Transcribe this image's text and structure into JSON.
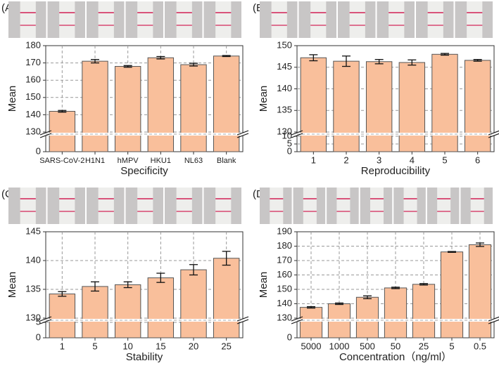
{
  "chart_data": [
    {
      "type": "bar",
      "label": "(A)",
      "xlabel": "Specificity",
      "ylabel": "Mean",
      "categories": [
        "SARS-CoV-2",
        "H1N1",
        "hMPV",
        "HKU1",
        "NL63",
        "Blank"
      ],
      "values": [
        142,
        171,
        168,
        173,
        169,
        174
      ],
      "errors": [
        0.5,
        1,
        0.5,
        0.7,
        0.8,
        0.3
      ],
      "color": "#f9bf9b",
      "ylim": [
        0,
        180
      ],
      "ybreak": [
        10,
        130
      ],
      "yticks": [
        0,
        130,
        140,
        150,
        160,
        170,
        180
      ],
      "grid": true,
      "xgrid": true
    },
    {
      "type": "bar",
      "label": "(B)",
      "xlabel": "Reproducibility",
      "ylabel": "Mean",
      "categories": [
        "1",
        "2",
        "3",
        "4",
        "5",
        "6"
      ],
      "values": [
        147.2,
        146.4,
        146.3,
        146.1,
        148,
        146.6
      ],
      "errors": [
        0.7,
        1.2,
        0.5,
        0.6,
        0.2,
        0.2
      ],
      "color": "#f9bf9b",
      "ylim": [
        0,
        150
      ],
      "ybreak": [
        10,
        130
      ],
      "yticks": [
        0,
        5,
        10,
        130,
        135,
        140,
        145,
        150
      ],
      "grid": true,
      "xgrid": false
    },
    {
      "type": "bar",
      "label": "(C)",
      "xlabel": "Stability",
      "ylabel": "Mean",
      "categories": [
        "1",
        "5",
        "10",
        "15",
        "20",
        "25"
      ],
      "values": [
        134.2,
        135.5,
        135.8,
        137,
        138.4,
        140.4
      ],
      "errors": [
        0.4,
        0.8,
        0.5,
        0.8,
        0.9,
        1.2
      ],
      "color": "#f9bf9b",
      "ylim": [
        0,
        145
      ],
      "ybreak": [
        5,
        130
      ],
      "yticks": [
        0,
        5,
        130,
        135,
        140,
        145
      ],
      "grid": true,
      "xgrid": true
    },
    {
      "type": "bar",
      "label": "(D)",
      "xlabel": "Concentration（ng/ml）",
      "ylabel": "Mean",
      "categories": [
        "5000",
        "1000",
        "500",
        "50",
        "25",
        "5",
        "0.5"
      ],
      "values": [
        137.5,
        140,
        144.5,
        151,
        153.5,
        176,
        181
      ],
      "errors": [
        0.5,
        0.5,
        1,
        0.5,
        0.5,
        0.3,
        1.2
      ],
      "color": "#f9bf9b",
      "ylim": [
        0,
        190
      ],
      "ybreak": [
        10,
        130
      ],
      "yticks": [
        0,
        130,
        140,
        150,
        160,
        170,
        180,
        190
      ],
      "grid": true,
      "xgrid": true
    }
  ]
}
